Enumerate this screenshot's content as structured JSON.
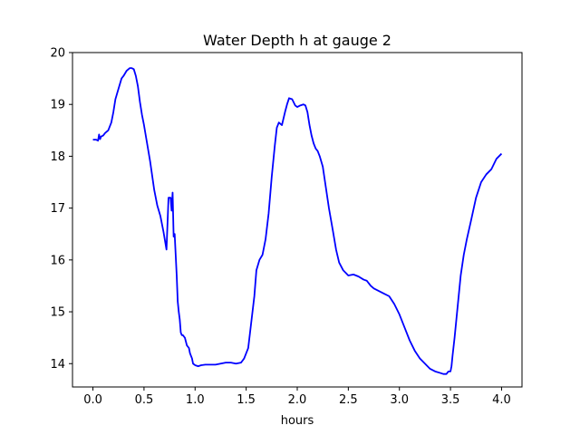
{
  "chart_data": {
    "type": "line",
    "title": "Water Depth h at gauge 2",
    "xlabel": "hours",
    "ylabel": "",
    "xlim": [
      -0.2,
      4.2
    ],
    "ylim": [
      13.55,
      20.0
    ],
    "xticks": [
      0.0,
      0.5,
      1.0,
      1.5,
      2.0,
      2.5,
      3.0,
      3.5,
      4.0
    ],
    "xtick_labels": [
      "0.0",
      "0.5",
      "1.0",
      "1.5",
      "2.0",
      "2.5",
      "3.0",
      "3.5",
      "4.0"
    ],
    "yticks": [
      14,
      15,
      16,
      17,
      18,
      19,
      20
    ],
    "ytick_labels": [
      "14",
      "15",
      "16",
      "17",
      "18",
      "19",
      "20"
    ],
    "grid": false,
    "series": [
      {
        "color": "#0000ff",
        "x": [
          0.0,
          0.03,
          0.05,
          0.06,
          0.07,
          0.08,
          0.1,
          0.12,
          0.15,
          0.18,
          0.2,
          0.22,
          0.25,
          0.28,
          0.3,
          0.33,
          0.36,
          0.38,
          0.4,
          0.42,
          0.44,
          0.46,
          0.48,
          0.5,
          0.53,
          0.56,
          0.6,
          0.63,
          0.66,
          0.69,
          0.72,
          0.74,
          0.76,
          0.77,
          0.78,
          0.79,
          0.8,
          0.81,
          0.82,
          0.83,
          0.84,
          0.85,
          0.86,
          0.87,
          0.88,
          0.9,
          0.92,
          0.94,
          0.95,
          0.97,
          0.98,
          1.0,
          1.03,
          1.06,
          1.1,
          1.15,
          1.2,
          1.25,
          1.3,
          1.35,
          1.4,
          1.45,
          1.48,
          1.52,
          1.55,
          1.58,
          1.6,
          1.63,
          1.66,
          1.69,
          1.72,
          1.75,
          1.78,
          1.8,
          1.82,
          1.85,
          1.88,
          1.9,
          1.92,
          1.95,
          1.98,
          2.0,
          2.03,
          2.06,
          2.08,
          2.1,
          2.12,
          2.14,
          2.16,
          2.18,
          2.2,
          2.22,
          2.25,
          2.28,
          2.31,
          2.35,
          2.38,
          2.41,
          2.45,
          2.5,
          2.55,
          2.6,
          2.65,
          2.68,
          2.7,
          2.72,
          2.75,
          2.8,
          2.85,
          2.9,
          2.95,
          3.0,
          3.05,
          3.1,
          3.15,
          3.2,
          3.25,
          3.3,
          3.35,
          3.4,
          3.43,
          3.46,
          3.48,
          3.5,
          3.51,
          3.52,
          3.54,
          3.56,
          3.58,
          3.6,
          3.63,
          3.66,
          3.7,
          3.75,
          3.8,
          3.85,
          3.9,
          3.95,
          4.0
        ],
        "y": [
          18.32,
          18.32,
          18.3,
          18.42,
          18.33,
          18.38,
          18.4,
          18.45,
          18.5,
          18.65,
          18.85,
          19.1,
          19.3,
          19.5,
          19.55,
          19.65,
          19.7,
          19.7,
          19.68,
          19.55,
          19.35,
          19.05,
          18.8,
          18.6,
          18.25,
          17.9,
          17.35,
          17.05,
          16.85,
          16.55,
          16.2,
          17.2,
          17.2,
          16.95,
          17.3,
          16.45,
          16.5,
          16.1,
          15.7,
          15.2,
          15.0,
          14.85,
          14.6,
          14.55,
          14.55,
          14.5,
          14.35,
          14.3,
          14.2,
          14.1,
          14.0,
          13.97,
          13.95,
          13.97,
          13.98,
          13.98,
          13.98,
          14.0,
          14.02,
          14.02,
          14.0,
          14.02,
          14.1,
          14.3,
          14.8,
          15.3,
          15.8,
          16.0,
          16.1,
          16.4,
          16.9,
          17.6,
          18.2,
          18.55,
          18.65,
          18.6,
          18.85,
          19.0,
          19.12,
          19.1,
          18.98,
          18.95,
          18.98,
          19.0,
          18.98,
          18.85,
          18.6,
          18.4,
          18.25,
          18.15,
          18.1,
          18.0,
          17.8,
          17.4,
          17.0,
          16.55,
          16.2,
          15.95,
          15.8,
          15.7,
          15.72,
          15.68,
          15.62,
          15.6,
          15.55,
          15.5,
          15.45,
          15.4,
          15.35,
          15.3,
          15.15,
          14.95,
          14.7,
          14.45,
          14.25,
          14.1,
          14.0,
          13.9,
          13.85,
          13.82,
          13.8,
          13.8,
          13.85,
          13.85,
          13.95,
          14.15,
          14.5,
          14.9,
          15.3,
          15.7,
          16.1,
          16.4,
          16.75,
          17.2,
          17.5,
          17.65,
          17.75,
          17.95,
          18.05
        ]
      }
    ]
  }
}
